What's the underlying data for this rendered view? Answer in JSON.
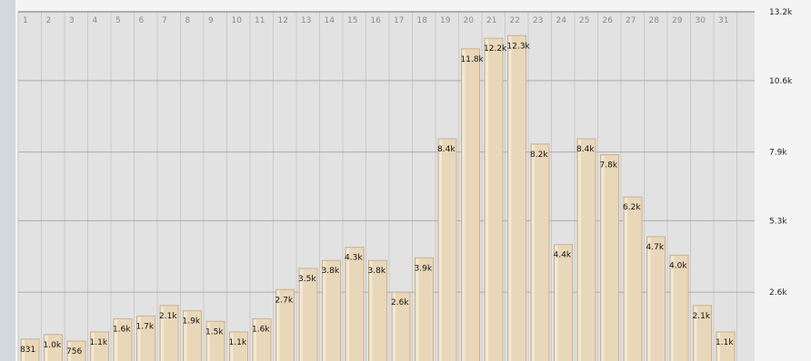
{
  "chart_data": {
    "type": "bar",
    "categories": [
      "1",
      "2",
      "3",
      "4",
      "5",
      "6",
      "7",
      "8",
      "9",
      "10",
      "11",
      "12",
      "13",
      "14",
      "15",
      "16",
      "17",
      "18",
      "19",
      "20",
      "21",
      "22",
      "23",
      "24",
      "25",
      "26",
      "27",
      "28",
      "29",
      "30",
      "31"
    ],
    "values": [
      831,
      1000,
      756,
      1100,
      1600,
      1700,
      2100,
      1900,
      1500,
      1100,
      1600,
      2700,
      3500,
      3800,
      4300,
      3800,
      2600,
      3900,
      8400,
      11800,
      12200,
      12300,
      8200,
      4400,
      8400,
      7800,
      6200,
      4700,
      4000,
      2100,
      1100
    ],
    "value_labels": [
      "831",
      "1.0k",
      "756",
      "1.1k",
      "1.6k",
      "1.7k",
      "2.1k",
      "1.9k",
      "1.5k",
      "1.1k",
      "1.6k",
      "2.7k",
      "3.5k",
      "3.8k",
      "4.3k",
      "3.8k",
      "2.6k",
      "3.9k",
      "8.4k",
      "11.8k",
      "12.2k",
      "12.3k",
      "8.2k",
      "4.4k",
      "8.4k",
      "7.8k",
      "6.2k",
      "4.7k",
      "4.0k",
      "2.1k",
      "1.1k"
    ],
    "y_axis": {
      "position": "right",
      "min": 0,
      "max": 13200,
      "ticks": [
        {
          "value": 13200,
          "label": "13.2k"
        },
        {
          "value": 10600,
          "label": "10.6k"
        },
        {
          "value": 7900,
          "label": "7.9k"
        },
        {
          "value": 5300,
          "label": "5.3k"
        },
        {
          "value": 2600,
          "label": "2.6k"
        }
      ]
    },
    "grid": true,
    "legend": "none",
    "colors": {
      "bar_fill": "#e9d7b9",
      "bar_edge": "#c9b28f",
      "plot_bg": "#e2e2e2",
      "grid_line": "#ababab"
    }
  }
}
